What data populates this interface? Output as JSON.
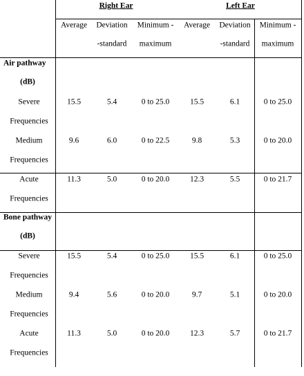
{
  "table": {
    "groups": [
      "Right Ear",
      "Left Ear"
    ],
    "columns": [
      [
        "Average"
      ],
      [
        "Deviation",
        "-standard"
      ],
      [
        "Minimum -",
        "maximum"
      ],
      [
        "Average"
      ],
      [
        "Deviation",
        "-standard"
      ],
      [
        "Minimum -",
        "maximum"
      ]
    ],
    "sections": [
      {
        "title": [
          "Air pathway",
          "(dB)"
        ],
        "rows": [
          {
            "label": [
              "Severe",
              "Frequencies"
            ],
            "cells": [
              "15.5",
              "5.4",
              "0 to 25.0",
              "15.5",
              "6.1",
              "0 to 25.0"
            ]
          },
          {
            "label": [
              "Medium",
              "Frequencies"
            ],
            "cells": [
              "9.6",
              "6.0",
              "0 to 22.5",
              "9.8",
              "5.3",
              "0 to 20.0"
            ]
          },
          {
            "label": [
              "Acute",
              "Frequencies"
            ],
            "cells": [
              "11.3",
              "5.0",
              "0 to 20.0",
              "12.3",
              "5.5",
              "0 to 21.7"
            ]
          }
        ]
      },
      {
        "title": [
          "Bone pathway",
          "(dB)"
        ],
        "rows": [
          {
            "label": [
              "Severe",
              "Frequencies"
            ],
            "cells": [
              "15.5",
              "5.4",
              "0 to 25.0",
              "15.5",
              "6.1",
              "0 to 25.0"
            ]
          },
          {
            "label": [
              "Medium",
              "Frequencies"
            ],
            "cells": [
              "9.4",
              "5.6",
              "0 to 20.0",
              "9.7",
              "5.1",
              "0 to 20.0"
            ]
          },
          {
            "label": [
              "Acute",
              "Frequencies"
            ],
            "cells": [
              "11.3",
              "5.0",
              "0 to 20.0",
              "12.3",
              "5.7",
              "0 to 21.7"
            ]
          }
        ]
      }
    ]
  }
}
